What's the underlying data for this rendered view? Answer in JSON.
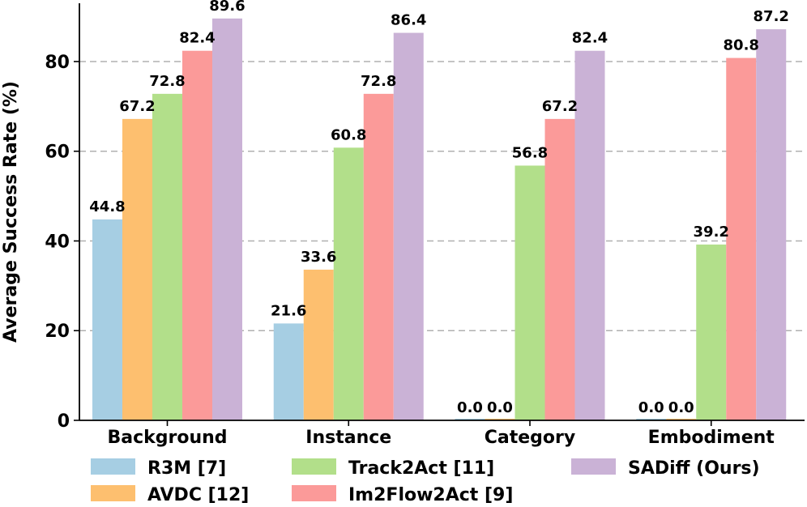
{
  "chart_data": {
    "type": "bar",
    "title": "",
    "xlabel": "",
    "ylabel": "Average Success Rate (%)",
    "ylim": [
      0,
      93
    ],
    "yticks": [
      0,
      20,
      40,
      60,
      80
    ],
    "grid": "horizontal dashed",
    "categories": [
      "Background",
      "Instance",
      "Category",
      "Embodiment"
    ],
    "series": [
      {
        "name": "R3M [7]",
        "color": "#a6cee3",
        "values": [
          44.8,
          21.6,
          0.0,
          0.0
        ],
        "labels": [
          "44.8",
          "21.6",
          "0.0",
          "0.0"
        ]
      },
      {
        "name": "AVDC [12]",
        "color": "#fdbf6f",
        "values": [
          67.2,
          33.6,
          0.0,
          0.0
        ],
        "labels": [
          "67.2",
          "33.6",
          "0.0",
          "0.0"
        ]
      },
      {
        "name": "Track2Act [11]",
        "color": "#b2df8a",
        "values": [
          72.8,
          60.8,
          56.8,
          39.2
        ],
        "labels": [
          "72.8",
          "60.8",
          "56.8",
          "39.2"
        ]
      },
      {
        "name": "Im2Flow2Act [9]",
        "color": "#fb9a99",
        "values": [
          82.4,
          72.8,
          67.2,
          80.8
        ],
        "labels": [
          "82.4",
          "72.8",
          "67.2",
          "80.8"
        ]
      },
      {
        "name": "SADiff (Ours)",
        "color": "#cab2d6",
        "values": [
          89.6,
          86.4,
          82.4,
          87.2
        ],
        "labels": [
          "89.6",
          "86.4",
          "82.4",
          "87.2"
        ]
      }
    ],
    "zero_bar_display": 2,
    "legend": {
      "placement": "bottom",
      "rows": [
        [
          "R3M [7]",
          "Track2Act [11]",
          "SADiff (Ours)"
        ],
        [
          "AVDC [12]",
          "Im2Flow2Act [9]"
        ]
      ]
    }
  }
}
